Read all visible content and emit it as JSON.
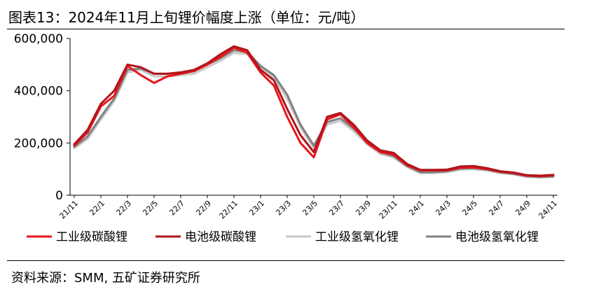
{
  "title": "图表13：2024年11月上旬锂价幅度上涨（单位：元/吨）",
  "source": "资料来源：SMM, 五矿证券研究所",
  "chart_data": {
    "type": "line",
    "title": "图表13：2024年11月上旬锂价幅度上涨（单位：元/吨）",
    "xlabel": "",
    "ylabel": "",
    "ylim": [
      0,
      600000
    ],
    "yticks": [
      0,
      200000,
      400000,
      600000
    ],
    "ytick_labels": [
      "0",
      "200,000",
      "400,000",
      "600,000"
    ],
    "x_tick_labels": [
      "21/11",
      "22/1",
      "22/3",
      "22/5",
      "22/7",
      "22/9",
      "22/11",
      "23/1",
      "23/3",
      "23/5",
      "23/7",
      "23/9",
      "23/11",
      "24/1",
      "24/3",
      "24/5",
      "24/7",
      "24/9",
      "24/11"
    ],
    "grid": false,
    "legend_position": "bottom",
    "x": [
      "21/11",
      "21/12",
      "22/1",
      "22/2",
      "22/3",
      "22/4",
      "22/5",
      "22/6",
      "22/7",
      "22/8",
      "22/9",
      "22/10",
      "22/11",
      "22/12",
      "23/1",
      "23/2",
      "23/3",
      "23/4",
      "23/5",
      "23/6",
      "23/7",
      "23/8",
      "23/9",
      "23/10",
      "23/11",
      "23/12",
      "24/1",
      "24/2",
      "24/3",
      "24/4",
      "24/5",
      "24/6",
      "24/7",
      "24/8",
      "24/9",
      "24/10",
      "24/11"
    ],
    "series": [
      {
        "name": "工业级碳酸锂",
        "color": "#e8151b",
        "values": [
          190000,
          240000,
          340000,
          380000,
          495000,
          460000,
          430000,
          455000,
          465000,
          475000,
          500000,
          530000,
          565000,
          545000,
          470000,
          420000,
          300000,
          200000,
          145000,
          290000,
          310000,
          260000,
          200000,
          165000,
          155000,
          115000,
          95000,
          95000,
          95000,
          105000,
          107000,
          100000,
          90000,
          85000,
          75000,
          73000,
          76000
        ]
      },
      {
        "name": "电池级碳酸锂",
        "color": "#b0151b",
        "values": [
          195000,
          250000,
          350000,
          400000,
          500000,
          490000,
          465000,
          465000,
          470000,
          480000,
          505000,
          540000,
          570000,
          555000,
          480000,
          440000,
          330000,
          230000,
          165000,
          300000,
          315000,
          270000,
          210000,
          172000,
          162000,
          120000,
          97000,
          97000,
          98000,
          110000,
          112000,
          104000,
          92000,
          87000,
          77000,
          75000,
          78000
        ]
      },
      {
        "name": "工业级氢氧化锂",
        "color": "#c8c8c8",
        "values": [
          180000,
          215000,
          290000,
          360000,
          470000,
          480000,
          455000,
          455000,
          460000,
          465000,
          490000,
          515000,
          545000,
          540000,
          490000,
          450000,
          370000,
          260000,
          180000,
          270000,
          285000,
          245000,
          195000,
          158000,
          145000,
          108000,
          85000,
          85000,
          88000,
          98000,
          100000,
          95000,
          85000,
          80000,
          70000,
          68000,
          70000
        ]
      },
      {
        "name": "电池级氢氧化锂",
        "color": "#808080",
        "values": [
          185000,
          225000,
          300000,
          370000,
          480000,
          485000,
          465000,
          465000,
          470000,
          475000,
          500000,
          525000,
          555000,
          548000,
          495000,
          460000,
          385000,
          270000,
          190000,
          280000,
          295000,
          255000,
          205000,
          165000,
          150000,
          112000,
          88000,
          88000,
          92000,
          102000,
          104000,
          98000,
          88000,
          82000,
          73000,
          70000,
          72000
        ]
      }
    ]
  }
}
